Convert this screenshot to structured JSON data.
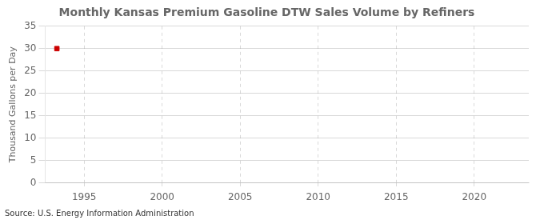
{
  "chart_data": {
    "type": "scatter",
    "title": "Monthly Kansas Premium Gasoline DTW Sales Volume by Refiners",
    "y_label": "Thousand Gallons per Day",
    "annotation": "Source: U.S. Energy Information Administration",
    "x": [
      1993.25
    ],
    "values": [
      30.0
    ],
    "color": "#cc0000",
    "marker": "square",
    "xlim": [
      1992.5,
      2023.5
    ],
    "xticks": [
      1995,
      2000,
      2005,
      2010,
      2015,
      2020
    ],
    "ylim": [
      0,
      35
    ],
    "yticks": [
      0,
      5,
      10,
      15,
      20,
      25,
      30,
      35
    ],
    "grid": true
  }
}
